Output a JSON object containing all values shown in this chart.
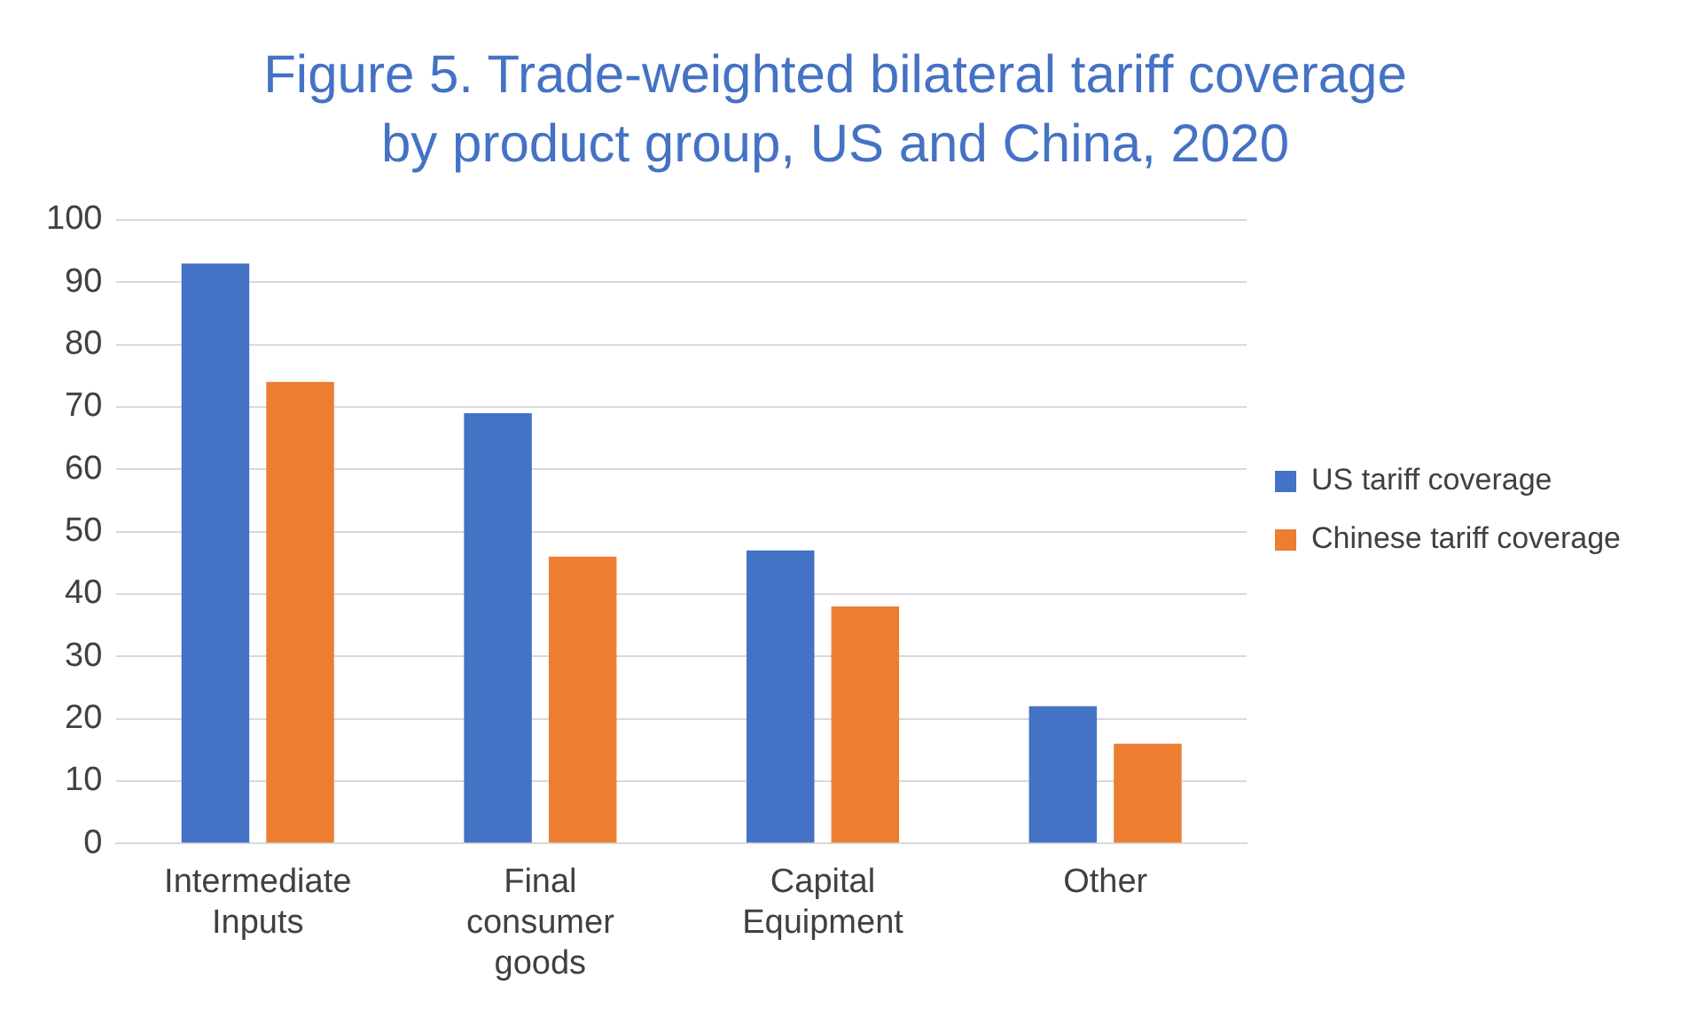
{
  "chart_data": {
    "type": "bar",
    "title": "Figure 5. Trade-weighted bilateral tariff coverage by product group, US and China, 2020",
    "categories": [
      "Intermediate Inputs",
      "Final consumer goods",
      "Capital Equipment",
      "Other"
    ],
    "series": [
      {
        "name": "US tariff coverage",
        "color": "#4472c4",
        "values": [
          93,
          69,
          47,
          22
        ]
      },
      {
        "name": "Chinese tariff coverage",
        "color": "#ed7d31",
        "values": [
          74,
          46,
          38,
          16
        ]
      }
    ],
    "ylim": [
      0,
      100
    ],
    "yticks": [
      0,
      10,
      20,
      30,
      40,
      50,
      60,
      70,
      80,
      90,
      100
    ],
    "grid": "y",
    "legend": "right"
  }
}
